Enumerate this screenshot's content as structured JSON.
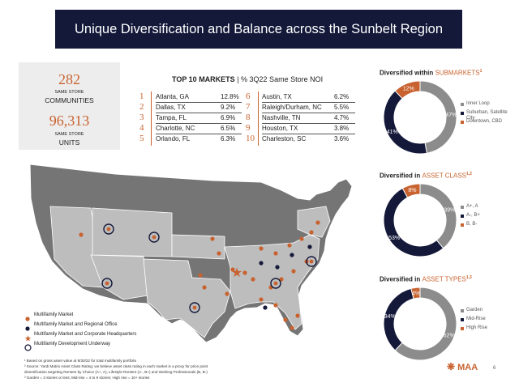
{
  "header": {
    "title": "Unique Diversification and Balance across the Sunbelt Region"
  },
  "stats": {
    "communities": {
      "value": "282",
      "label_small": "SAME STORE",
      "label_large": "COMMUNITIES"
    },
    "units": {
      "value": "96,313",
      "label_small": "SAME STORE",
      "label_large": "UNITS"
    }
  },
  "top10": {
    "title": "TOP 10 MARKETS",
    "subtitle": "| % 3Q22 Same Store NOI",
    "markets": [
      {
        "rank": "1",
        "name": "Atlanta, GA",
        "pct": "12.8%"
      },
      {
        "rank": "2",
        "name": "Dallas, TX",
        "pct": "9.2%"
      },
      {
        "rank": "3",
        "name": "Tampa, FL",
        "pct": "6.9%"
      },
      {
        "rank": "4",
        "name": "Charlotte, NC",
        "pct": "6.5%"
      },
      {
        "rank": "5",
        "name": "Orlando, FL",
        "pct": "6.3%"
      },
      {
        "rank": "6",
        "name": "Austin, TX",
        "pct": "6.2%"
      },
      {
        "rank": "7",
        "name": "Raleigh/Durham, NC",
        "pct": "5.5%"
      },
      {
        "rank": "8",
        "name": "Nashville, TN",
        "pct": "4.7%"
      },
      {
        "rank": "9",
        "name": "Houston, TX",
        "pct": "3.8%"
      },
      {
        "rank": "10",
        "name": "Charleston, SC",
        "pct": "3.6%"
      }
    ]
  },
  "colors": {
    "navy": "#14193a",
    "orange": "#c8622f",
    "gray": "#8c8c8c",
    "map_dark": "#757575",
    "map_light": "#bdbdbd"
  },
  "chart_data": [
    {
      "type": "pie",
      "title_prefix": "Diversified within ",
      "title_accent": "SUBMARKETS",
      "title_sup": "1",
      "categories": [
        "Inner Loop",
        "Suburban, Satellite City",
        "Downtown, CBD"
      ],
      "values": [
        47,
        41,
        12
      ],
      "labels": [
        "47%",
        "41%",
        "12%"
      ],
      "colors": [
        "#8c8c8c",
        "#14193a",
        "#c8622f"
      ]
    },
    {
      "type": "pie",
      "title_prefix": "Diversified in ",
      "title_accent": "ASSET CLASS",
      "title_sup": "1,2",
      "categories": [
        "A+, A",
        "A-, B+",
        "B, B-"
      ],
      "values": [
        39,
        53,
        8
      ],
      "labels": [
        "39%",
        "53%",
        "8%"
      ],
      "colors": [
        "#8c8c8c",
        "#14193a",
        "#c8622f"
      ]
    },
    {
      "type": "pie",
      "title_prefix": "Diversified in ",
      "title_accent": "ASSET TYPES",
      "title_sup": "1,3",
      "categories": [
        "Garden",
        "Mid-Rise",
        "High Rise"
      ],
      "values": [
        62,
        34,
        4
      ],
      "labels": [
        "62%",
        "34%",
        "4%"
      ],
      "colors": [
        "#8c8c8c",
        "#14193a",
        "#c8622f"
      ]
    }
  ],
  "map_legend": [
    {
      "icon": "orange-dot-icon",
      "label": "Multifamily Market"
    },
    {
      "icon": "navy-dot-icon",
      "label": "Multifamily Market and Regional Office"
    },
    {
      "icon": "star-icon",
      "label": "Multifamily Market and Corporate Headquarters"
    },
    {
      "icon": "ring-icon",
      "label": "Multifamily Development Underway"
    }
  ],
  "footnotes": [
    "¹ Based on gross asset value at 9/30/22 for total multifamily portfolio",
    "² Source: Yardi Matrix Asset Class Rating; we believe asset class rating in each market is a proxy for price point",
    "   diversification targeting Renters by Choice (A+, A), Lifestyle Renters (A-, B+) and Working Professionals (B, B-)",
    "³ Garden = 3 stories or less; Mid-rise = 4 to 9 stories; High rise = 10+ stories"
  ],
  "logo": {
    "text": "MAA"
  },
  "page_number": "6"
}
